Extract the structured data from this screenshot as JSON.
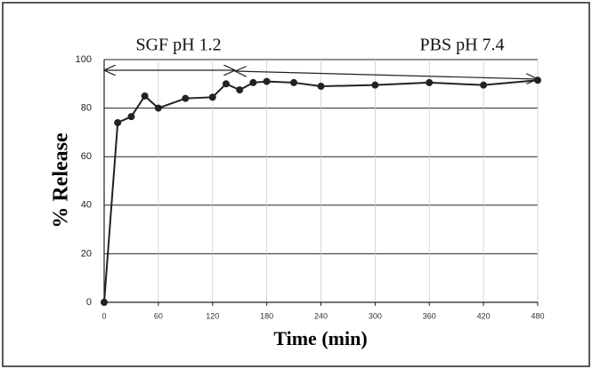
{
  "chart_data": {
    "type": "line",
    "x_label": "Time (min)",
    "y_label": "% Release",
    "x": [
      0,
      15,
      30,
      45,
      60,
      90,
      120,
      135,
      150,
      165,
      180,
      210,
      240,
      300,
      360,
      420,
      480
    ],
    "values": [
      0,
      74,
      76.5,
      85,
      80,
      84,
      84.5,
      90,
      87.5,
      90.5,
      91,
      90.5,
      89,
      89.5,
      90.5,
      89.5,
      91.5
    ],
    "color": "#222222",
    "xlim": [
      0,
      480
    ],
    "xticks": [
      0,
      60,
      120,
      180,
      240,
      300,
      360,
      420,
      480
    ],
    "ylim": [
      0,
      100
    ],
    "yticks": [
      0,
      20,
      40,
      60,
      80,
      100
    ],
    "grid": true,
    "annotations": [
      {
        "text": "SGF pH 1.2",
        "x_start": 0,
        "x_end": 145
      },
      {
        "text": "PBS pH 7.4",
        "x_start": 145,
        "x_end": 480
      }
    ]
  }
}
